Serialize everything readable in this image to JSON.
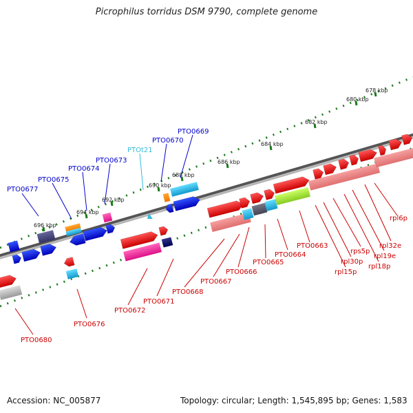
{
  "title": "Picrophilus torridus DSM 9790, complete genome",
  "footer": {
    "accession": "Accession: NC_005877",
    "topology": "Topology: circular; Length: 1,545,895 bp; Genes: 1,583"
  },
  "colors": {
    "backbone": "#7a7a7a",
    "tick": "#1a7a1a",
    "label_blue": "#0000cc",
    "label_cyan": "#33bbdd",
    "label_red": "#cc0000"
  },
  "scale_ticks": [
    "678 kbp",
    "680 kbp",
    "682 kbp",
    "684 kbp",
    "686 kbp",
    "688 kbp",
    "690 kbp",
    "692 kbp",
    "694 kbp",
    "696 kbp"
  ],
  "gene_labels": {
    "blue": [
      "PTO0669",
      "PTO0670",
      "PTO0673",
      "PTO0674",
      "PTO0675",
      "PTO0677"
    ],
    "cyan": [
      "PTOt21"
    ],
    "red": [
      "PTO0663",
      "PTO0664",
      "PTO0665",
      "PTO0666",
      "PTO0667",
      "PTO0668",
      "PTO0671",
      "PTO0672",
      "PTO0676",
      "PTO0680",
      "rpl6p",
      "rpl32e",
      "rpl19e",
      "rpl18p",
      "rps5p",
      "rpl30p",
      "rpl15p"
    ]
  }
}
